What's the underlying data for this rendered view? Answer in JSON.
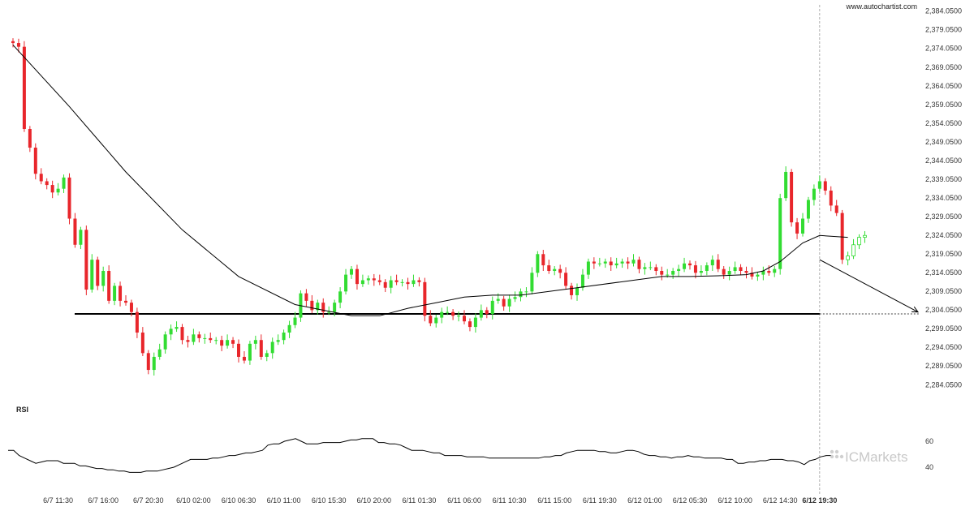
{
  "watermark_url": "www.autochartist.com",
  "logo_text": "ICMarkets",
  "rsi_title": "RSI",
  "colors": {
    "up": "#32dc32",
    "down": "#e8262b",
    "line": "#000000",
    "level": "#000000",
    "grid_dash": "#999999"
  },
  "chart_data": [
    {
      "type": "candlestick",
      "title": "",
      "y_ticks": [
        "2,384.0500",
        "2,379.0500",
        "2,374.0500",
        "2,369.0500",
        "2,364.0500",
        "2,359.0500",
        "2,354.0500",
        "2,349.0500",
        "2,344.0500",
        "2,339.0500",
        "2,334.0500",
        "2,329.0500",
        "2,324.0500",
        "2,319.0500",
        "2,314.0500",
        "2,309.0500",
        "2,304.0500",
        "2,299.0500",
        "2,294.0500",
        "2,289.0500",
        "2,284.0500"
      ],
      "y_tick_values": [
        2384.05,
        2379.05,
        2374.05,
        2369.05,
        2364.05,
        2359.05,
        2354.05,
        2349.05,
        2344.05,
        2339.05,
        2334.05,
        2329.05,
        2324.05,
        2319.05,
        2314.05,
        2309.05,
        2304.05,
        2299.05,
        2294.05,
        2289.05,
        2284.05
      ],
      "ylim": [
        2281.5,
        2385.5
      ],
      "x_ticks": [
        "6/7 11:30",
        "6/7 16:00",
        "6/7 20:30",
        "6/10 02:00",
        "6/10 06:30",
        "6/10 11:00",
        "6/10 15:30",
        "6/10 20:00",
        "6/11 01:30",
        "6/11 06:00",
        "6/11 10:30",
        "6/11 15:00",
        "6/11 19:30",
        "6/12 01:00",
        "6/12 05:30",
        "6/12 10:00",
        "6/12 14:30",
        "6/12 19:30"
      ],
      "x_tick_bar_index": [
        8,
        16,
        24,
        32,
        40,
        48,
        56,
        64,
        72,
        80,
        88,
        96,
        104,
        112,
        120,
        128,
        136,
        143
      ],
      "current_time_label": "6/12 19:30",
      "close_prices": [
        2375.5,
        2374.5,
        2352.5,
        2347.5,
        2340.5,
        2338.5,
        2337.5,
        2335.5,
        2336.5,
        2339.5,
        2328.5,
        2321.5,
        2325.5,
        2309.5,
        2317.5,
        2310.5,
        2314.5,
        2306.5,
        2310.5,
        2306.5,
        2306.0,
        2303.5,
        2298.0,
        2292.5,
        2288.0,
        2291.5,
        2293.5,
        2297.5,
        2299.0,
        2299.5,
        2296.0,
        2295.5,
        2297.5,
        2296.5,
        2296.5,
        2296.0,
        2296.0,
        2294.5,
        2296.0,
        2295.0,
        2291.5,
        2290.5,
        2295.0,
        2296.0,
        2291.5,
        2292.5,
        2295.5,
        2296.0,
        2298.0,
        2300.0,
        2302.0,
        2308.5,
        2306.5,
        2304.0,
        2306.0,
        2303.5,
        2303.5,
        2306.0,
        2309.0,
        2313.5,
        2315.0,
        2311.0,
        2312.0,
        2312.5,
        2312.0,
        2311.5,
        2310.0,
        2312.0,
        2311.5,
        2311.5,
        2311.0,
        2312.0,
        2311.5,
        2302.5,
        2300.5,
        2302.0,
        2303.5,
        2303.5,
        2302.5,
        2302.5,
        2301.0,
        2299.5,
        2302.0,
        2304.0,
        2303.0,
        2306.5,
        2307.0,
        2305.0,
        2307.0,
        2307.5,
        2309.0,
        2309.0,
        2314.0,
        2319.0,
        2316.0,
        2314.5,
        2315.0,
        2314.0,
        2310.5,
        2308.0,
        2310.0,
        2313.5,
        2317.0,
        2316.5,
        2316.5,
        2317.0,
        2316.0,
        2316.5,
        2317.0,
        2316.5,
        2317.5,
        2315.0,
        2315.5,
        2315.5,
        2314.5,
        2313.5,
        2313.5,
        2314.5,
        2315.0,
        2316.5,
        2316.0,
        2314.0,
        2314.5,
        2316.0,
        2317.5,
        2315.0,
        2313.5,
        2314.5,
        2315.5,
        2314.5,
        2314.0,
        2313.0,
        2313.5,
        2314.5,
        2314.0,
        2315.0,
        2334.0,
        2341.0,
        2327.5,
        2324.5,
        2328.5,
        2333.5,
        2336.5,
        2338.5,
        2336.0,
        2332.0,
        2330.0,
        2317.5,
        2318.5,
        2321.5,
        2323.5,
        2324.0
      ],
      "moving_average_line": [
        {
          "t": 0,
          "v": 2375.0
        },
        {
          "t": 10,
          "v": 2358.5
        },
        {
          "t": 20,
          "v": 2341.0
        },
        {
          "t": 30,
          "v": 2325.5
        },
        {
          "t": 40,
          "v": 2313.0
        },
        {
          "t": 50,
          "v": 2305.5
        },
        {
          "t": 60,
          "v": 2302.5
        },
        {
          "t": 65,
          "v": 2302.5
        },
        {
          "t": 70,
          "v": 2304.5
        },
        {
          "t": 75,
          "v": 2306.0
        },
        {
          "t": 80,
          "v": 2307.5
        },
        {
          "t": 85,
          "v": 2308.0
        },
        {
          "t": 90,
          "v": 2308.0
        },
        {
          "t": 100,
          "v": 2310.0
        },
        {
          "t": 110,
          "v": 2312.0
        },
        {
          "t": 115,
          "v": 2313.0
        },
        {
          "t": 120,
          "v": 2313.0
        },
        {
          "t": 125,
          "v": 2313.2
        },
        {
          "t": 130,
          "v": 2313.5
        },
        {
          "t": 133,
          "v": 2314.5
        },
        {
          "t": 136,
          "v": 2317.0
        },
        {
          "t": 140,
          "v": 2322.0
        },
        {
          "t": 143,
          "v": 2324.0
        },
        {
          "t": 148,
          "v": 2323.5
        }
      ],
      "support_level": 2303.0,
      "forecast_target": 2303.5,
      "rsi": {
        "ticks": [
          "60",
          "40"
        ],
        "tick_values": [
          60,
          40
        ],
        "ylim": [
          25,
          75
        ],
        "values": [
          53,
          53,
          49,
          47,
          45,
          43,
          44,
          45,
          45,
          45,
          43,
          43,
          43,
          41,
          41,
          40,
          39,
          39,
          38,
          38,
          37,
          37,
          36,
          36,
          36,
          37,
          37,
          37,
          38,
          39,
          40,
          42,
          44,
          46,
          46,
          46,
          46,
          47,
          47,
          48,
          49,
          49,
          50,
          51,
          51,
          52,
          53,
          57,
          58,
          58,
          60,
          61,
          62,
          60,
          58,
          58,
          58,
          59,
          59,
          59,
          59,
          60,
          61,
          61,
          62,
          62,
          62,
          59,
          59,
          58,
          58,
          57,
          55,
          53,
          53,
          53,
          52,
          51,
          51,
          49,
          49,
          49,
          49,
          48,
          48,
          48,
          48,
          47,
          47,
          47,
          47,
          47,
          47,
          47,
          47,
          47,
          47,
          48,
          48,
          49,
          49,
          51,
          52,
          53,
          53,
          53,
          53,
          52,
          52,
          51,
          51,
          52,
          53,
          53,
          52,
          50,
          49,
          49,
          48,
          48,
          47,
          48,
          48,
          49,
          48,
          48,
          47,
          47,
          47,
          47,
          46,
          46,
          43,
          43,
          44,
          44,
          45,
          45,
          46,
          46,
          46,
          45,
          45,
          44,
          42,
          45,
          46,
          48,
          49,
          49
        ]
      }
    }
  ]
}
